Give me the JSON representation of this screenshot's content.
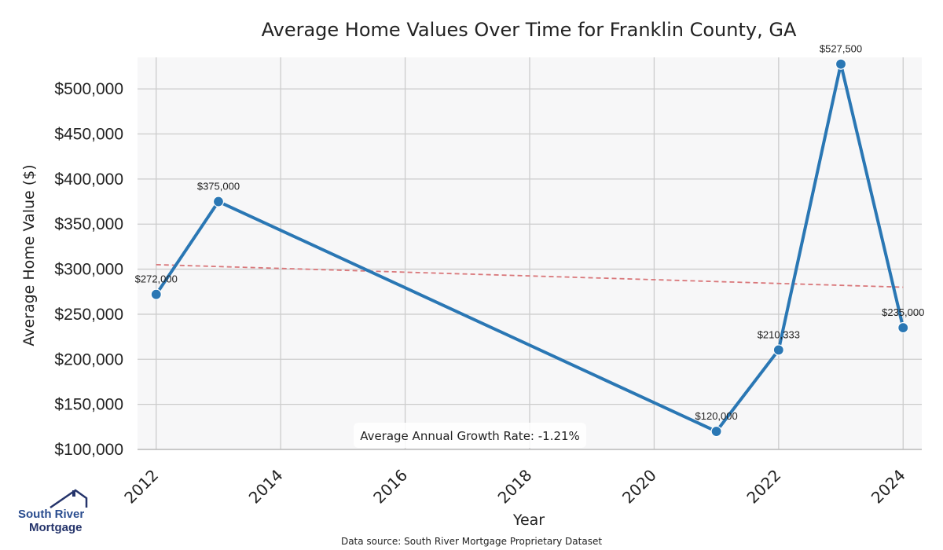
{
  "chart_data": {
    "type": "line",
    "title": "Average Home Values Over Time for Franklin County, GA",
    "xlabel": "Year",
    "ylabel": "Average Home Value ($)",
    "xlim": [
      2011.7,
      2024.3
    ],
    "ylim": [
      100000,
      535000
    ],
    "x_ticks": [
      2012,
      2014,
      2016,
      2018,
      2020,
      2022,
      2024
    ],
    "y_ticks": [
      100000,
      150000,
      200000,
      250000,
      300000,
      350000,
      400000,
      450000,
      500000
    ],
    "y_tick_labels": [
      "$100,000",
      "$150,000",
      "$200,000",
      "$250,000",
      "$300,000",
      "$350,000",
      "$400,000",
      "$450,000",
      "$500,000"
    ],
    "grid": true,
    "series": [
      {
        "name": "Average Home Value",
        "color": "#2a77b4",
        "x": [
          2012,
          2013,
          2021,
          2022,
          2023,
          2024
        ],
        "values": [
          272000,
          375000,
          120000,
          210333,
          527500,
          235000
        ],
        "data_labels": [
          "$272,000",
          "$375,000",
          "$120,000",
          "$210,333",
          "$527,500",
          "$235,000"
        ]
      }
    ],
    "trendline": {
      "name": "Trend",
      "color": "#d9777a",
      "style": "dashed",
      "x": [
        2012,
        2024
      ],
      "values": [
        305000,
        280000
      ]
    },
    "annotation": "Average Annual Growth Rate: -1.21%",
    "annotation_placement": "bottom-center"
  },
  "footer": {
    "source": "Data source: South River Mortgage Proprietary Dataset"
  },
  "logo": {
    "line1": "South River",
    "line2": "Mortgage",
    "color_primary": "#2a4d8f",
    "color_secondary": "#25346b"
  },
  "colors": {
    "plot_background": "#f7f7f8",
    "grid": "#cccccc",
    "axis_spine": "#bbbbbb"
  }
}
